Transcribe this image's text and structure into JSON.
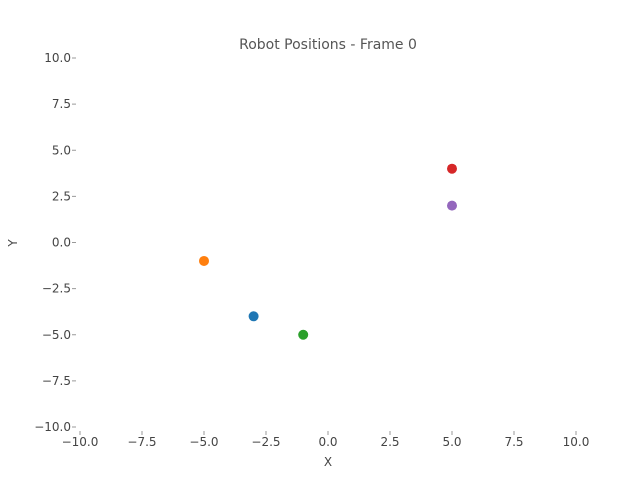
{
  "chart_data": {
    "type": "scatter",
    "title": "Robot Positions - Frame 0",
    "xlabel": "X",
    "ylabel": "Y",
    "xlim": [
      -10,
      10
    ],
    "ylim": [
      -10,
      10
    ],
    "grid": false,
    "x_ticks": [
      "−10.0",
      "−7.5",
      "−5.0",
      "−2.5",
      "0.0",
      "2.5",
      "5.0",
      "7.5",
      "10.0"
    ],
    "y_ticks": [
      "−10.0",
      "−7.5",
      "−5.0",
      "−2.5",
      "0.0",
      "2.5",
      "5.0",
      "7.5",
      "10.0"
    ],
    "x_tick_values": [
      -10,
      -7.5,
      -5,
      -2.5,
      0,
      2.5,
      5,
      7.5,
      10
    ],
    "y_tick_values": [
      -10,
      -7.5,
      -5,
      -2.5,
      0,
      2.5,
      5,
      7.5,
      10
    ],
    "points": [
      {
        "x": -3,
        "y": -4,
        "color": "#1f77b4"
      },
      {
        "x": -5,
        "y": -1,
        "color": "#ff7f0e"
      },
      {
        "x": -1,
        "y": -5,
        "color": "#2ca02c"
      },
      {
        "x": 5,
        "y": 4,
        "color": "#d62728"
      },
      {
        "x": 5,
        "y": 2,
        "color": "#9467bd"
      }
    ]
  }
}
